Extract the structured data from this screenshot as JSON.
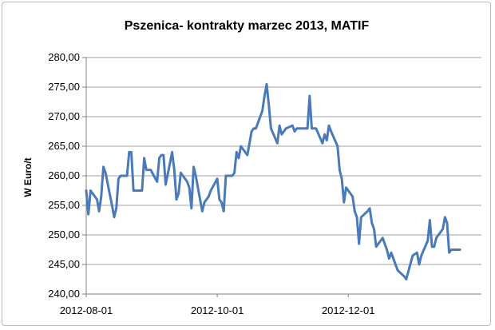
{
  "chart_data": {
    "type": "line",
    "title": "Pszenica- kontrakty marzec 2013, MATIF",
    "xlabel": "",
    "ylabel": "W Euro/t",
    "ylim": [
      240,
      280
    ],
    "ytick_step": 5,
    "ytick_labels": [
      "240,00",
      "245,00",
      "250,00",
      "255,00",
      "260,00",
      "265,00",
      "270,00",
      "275,00",
      "280,00"
    ],
    "xlim": [
      "2012-08-01",
      "2013-02-01"
    ],
    "xtick_dates": [
      "2012-08-01",
      "2012-10-01",
      "2012-12-01"
    ],
    "xtick_labels": [
      "2012-08-01",
      "2012-10-01",
      "2012-12-01"
    ],
    "grid": true,
    "legend": "none",
    "line_color": "#4a7ab8",
    "grid_color": "#a0a0a0",
    "series": [
      {
        "values": [
          [
            "2012-08-01",
            257.5
          ],
          [
            "2012-08-02",
            253.5
          ],
          [
            "2012-08-03",
            257.5
          ],
          [
            "2012-08-06",
            256.0
          ],
          [
            "2012-08-07",
            254.0
          ],
          [
            "2012-08-08",
            256.5
          ],
          [
            "2012-08-09",
            261.5
          ],
          [
            "2012-08-10",
            260.5
          ],
          [
            "2012-08-13",
            255.0
          ],
          [
            "2012-08-14",
            253.0
          ],
          [
            "2012-08-15",
            254.5
          ],
          [
            "2012-08-16",
            259.5
          ],
          [
            "2012-08-17",
            260.0
          ],
          [
            "2012-08-20",
            260.0
          ],
          [
            "2012-08-21",
            264.0
          ],
          [
            "2012-08-22",
            264.0
          ],
          [
            "2012-08-23",
            257.5
          ],
          [
            "2012-08-24",
            257.5
          ],
          [
            "2012-08-27",
            257.5
          ],
          [
            "2012-08-28",
            263.0
          ],
          [
            "2012-08-29",
            261.0
          ],
          [
            "2012-08-30",
            261.0
          ],
          [
            "2012-08-31",
            261.0
          ],
          [
            "2012-09-03",
            259.0
          ],
          [
            "2012-09-04",
            263.0
          ],
          [
            "2012-09-05",
            263.5
          ],
          [
            "2012-09-06",
            263.5
          ],
          [
            "2012-09-07",
            258.5
          ],
          [
            "2012-09-10",
            264.0
          ],
          [
            "2012-09-11",
            261.0
          ],
          [
            "2012-09-12",
            256.0
          ],
          [
            "2012-09-13",
            257.0
          ],
          [
            "2012-09-14",
            260.5
          ],
          [
            "2012-09-17",
            259.0
          ],
          [
            "2012-09-18",
            258.0
          ],
          [
            "2012-09-19",
            254.5
          ],
          [
            "2012-09-20",
            261.5
          ],
          [
            "2012-09-21",
            260.0
          ],
          [
            "2012-09-24",
            254.0
          ],
          [
            "2012-09-25",
            255.5
          ],
          [
            "2012-09-26",
            256.0
          ],
          [
            "2012-09-27",
            256.5
          ],
          [
            "2012-09-28",
            257.5
          ],
          [
            "2012-10-01",
            259.5
          ],
          [
            "2012-10-02",
            256.0
          ],
          [
            "2012-10-03",
            255.5
          ],
          [
            "2012-10-04",
            254.0
          ],
          [
            "2012-10-05",
            260.0
          ],
          [
            "2012-10-08",
            260.0
          ],
          [
            "2012-10-09",
            260.5
          ],
          [
            "2012-10-10",
            264.0
          ],
          [
            "2012-10-11",
            263.0
          ],
          [
            "2012-10-12",
            265.0
          ],
          [
            "2012-10-15",
            263.5
          ],
          [
            "2012-10-16",
            265.5
          ],
          [
            "2012-10-17",
            267.5
          ],
          [
            "2012-10-18",
            268.0
          ],
          [
            "2012-10-19",
            268.0
          ],
          [
            "2012-10-22",
            271.0
          ],
          [
            "2012-10-23",
            273.5
          ],
          [
            "2012-10-24",
            275.5
          ],
          [
            "2012-10-25",
            272.0
          ],
          [
            "2012-10-26",
            268.0
          ],
          [
            "2012-10-29",
            265.5
          ],
          [
            "2012-10-30",
            268.5
          ],
          [
            "2012-10-31",
            267.0
          ],
          [
            "2012-11-01",
            267.5
          ],
          [
            "2012-11-02",
            268.0
          ],
          [
            "2012-11-05",
            268.5
          ],
          [
            "2012-11-06",
            267.5
          ],
          [
            "2012-11-07",
            268.0
          ],
          [
            "2012-11-08",
            268.0
          ],
          [
            "2012-11-09",
            268.0
          ],
          [
            "2012-11-12",
            268.0
          ],
          [
            "2012-11-13",
            273.5
          ],
          [
            "2012-11-14",
            268.0
          ],
          [
            "2012-11-15",
            268.0
          ],
          [
            "2012-11-16",
            268.0
          ],
          [
            "2012-11-19",
            265.5
          ],
          [
            "2012-11-20",
            267.0
          ],
          [
            "2012-11-21",
            266.0
          ],
          [
            "2012-11-22",
            268.5
          ],
          [
            "2012-11-23",
            267.5
          ],
          [
            "2012-11-26",
            265.0
          ],
          [
            "2012-11-27",
            261.0
          ],
          [
            "2012-11-28",
            259.5
          ],
          [
            "2012-11-29",
            255.5
          ],
          [
            "2012-11-30",
            258.0
          ],
          [
            "2012-12-03",
            256.5
          ],
          [
            "2012-12-04",
            254.0
          ],
          [
            "2012-12-05",
            253.0
          ],
          [
            "2012-12-06",
            248.5
          ],
          [
            "2012-12-07",
            253.0
          ],
          [
            "2012-12-10",
            254.0
          ],
          [
            "2012-12-11",
            254.5
          ],
          [
            "2012-12-12",
            252.0
          ],
          [
            "2012-12-13",
            251.0
          ],
          [
            "2012-12-14",
            248.0
          ],
          [
            "2012-12-17",
            249.5
          ],
          [
            "2012-12-18",
            248.5
          ],
          [
            "2012-12-19",
            247.5
          ],
          [
            "2012-12-20",
            246.0
          ],
          [
            "2012-12-21",
            247.0
          ],
          [
            "2012-12-24",
            244.0
          ],
          [
            "2012-12-27",
            243.0
          ],
          [
            "2012-12-28",
            242.5
          ],
          [
            "2012-12-31",
            246.5
          ],
          [
            "2013-01-02",
            247.0
          ],
          [
            "2013-01-03",
            245.0
          ],
          [
            "2013-01-04",
            246.5
          ],
          [
            "2013-01-07",
            249.0
          ],
          [
            "2013-01-08",
            252.5
          ],
          [
            "2013-01-09",
            248.0
          ],
          [
            "2013-01-10",
            248.0
          ],
          [
            "2013-01-11",
            249.5
          ],
          [
            "2013-01-14",
            251.0
          ],
          [
            "2013-01-15",
            253.0
          ],
          [
            "2013-01-16",
            252.0
          ],
          [
            "2013-01-17",
            247.0
          ],
          [
            "2013-01-18",
            247.5
          ],
          [
            "2013-01-21",
            247.5
          ],
          [
            "2013-01-22",
            247.5
          ]
        ]
      }
    ]
  }
}
